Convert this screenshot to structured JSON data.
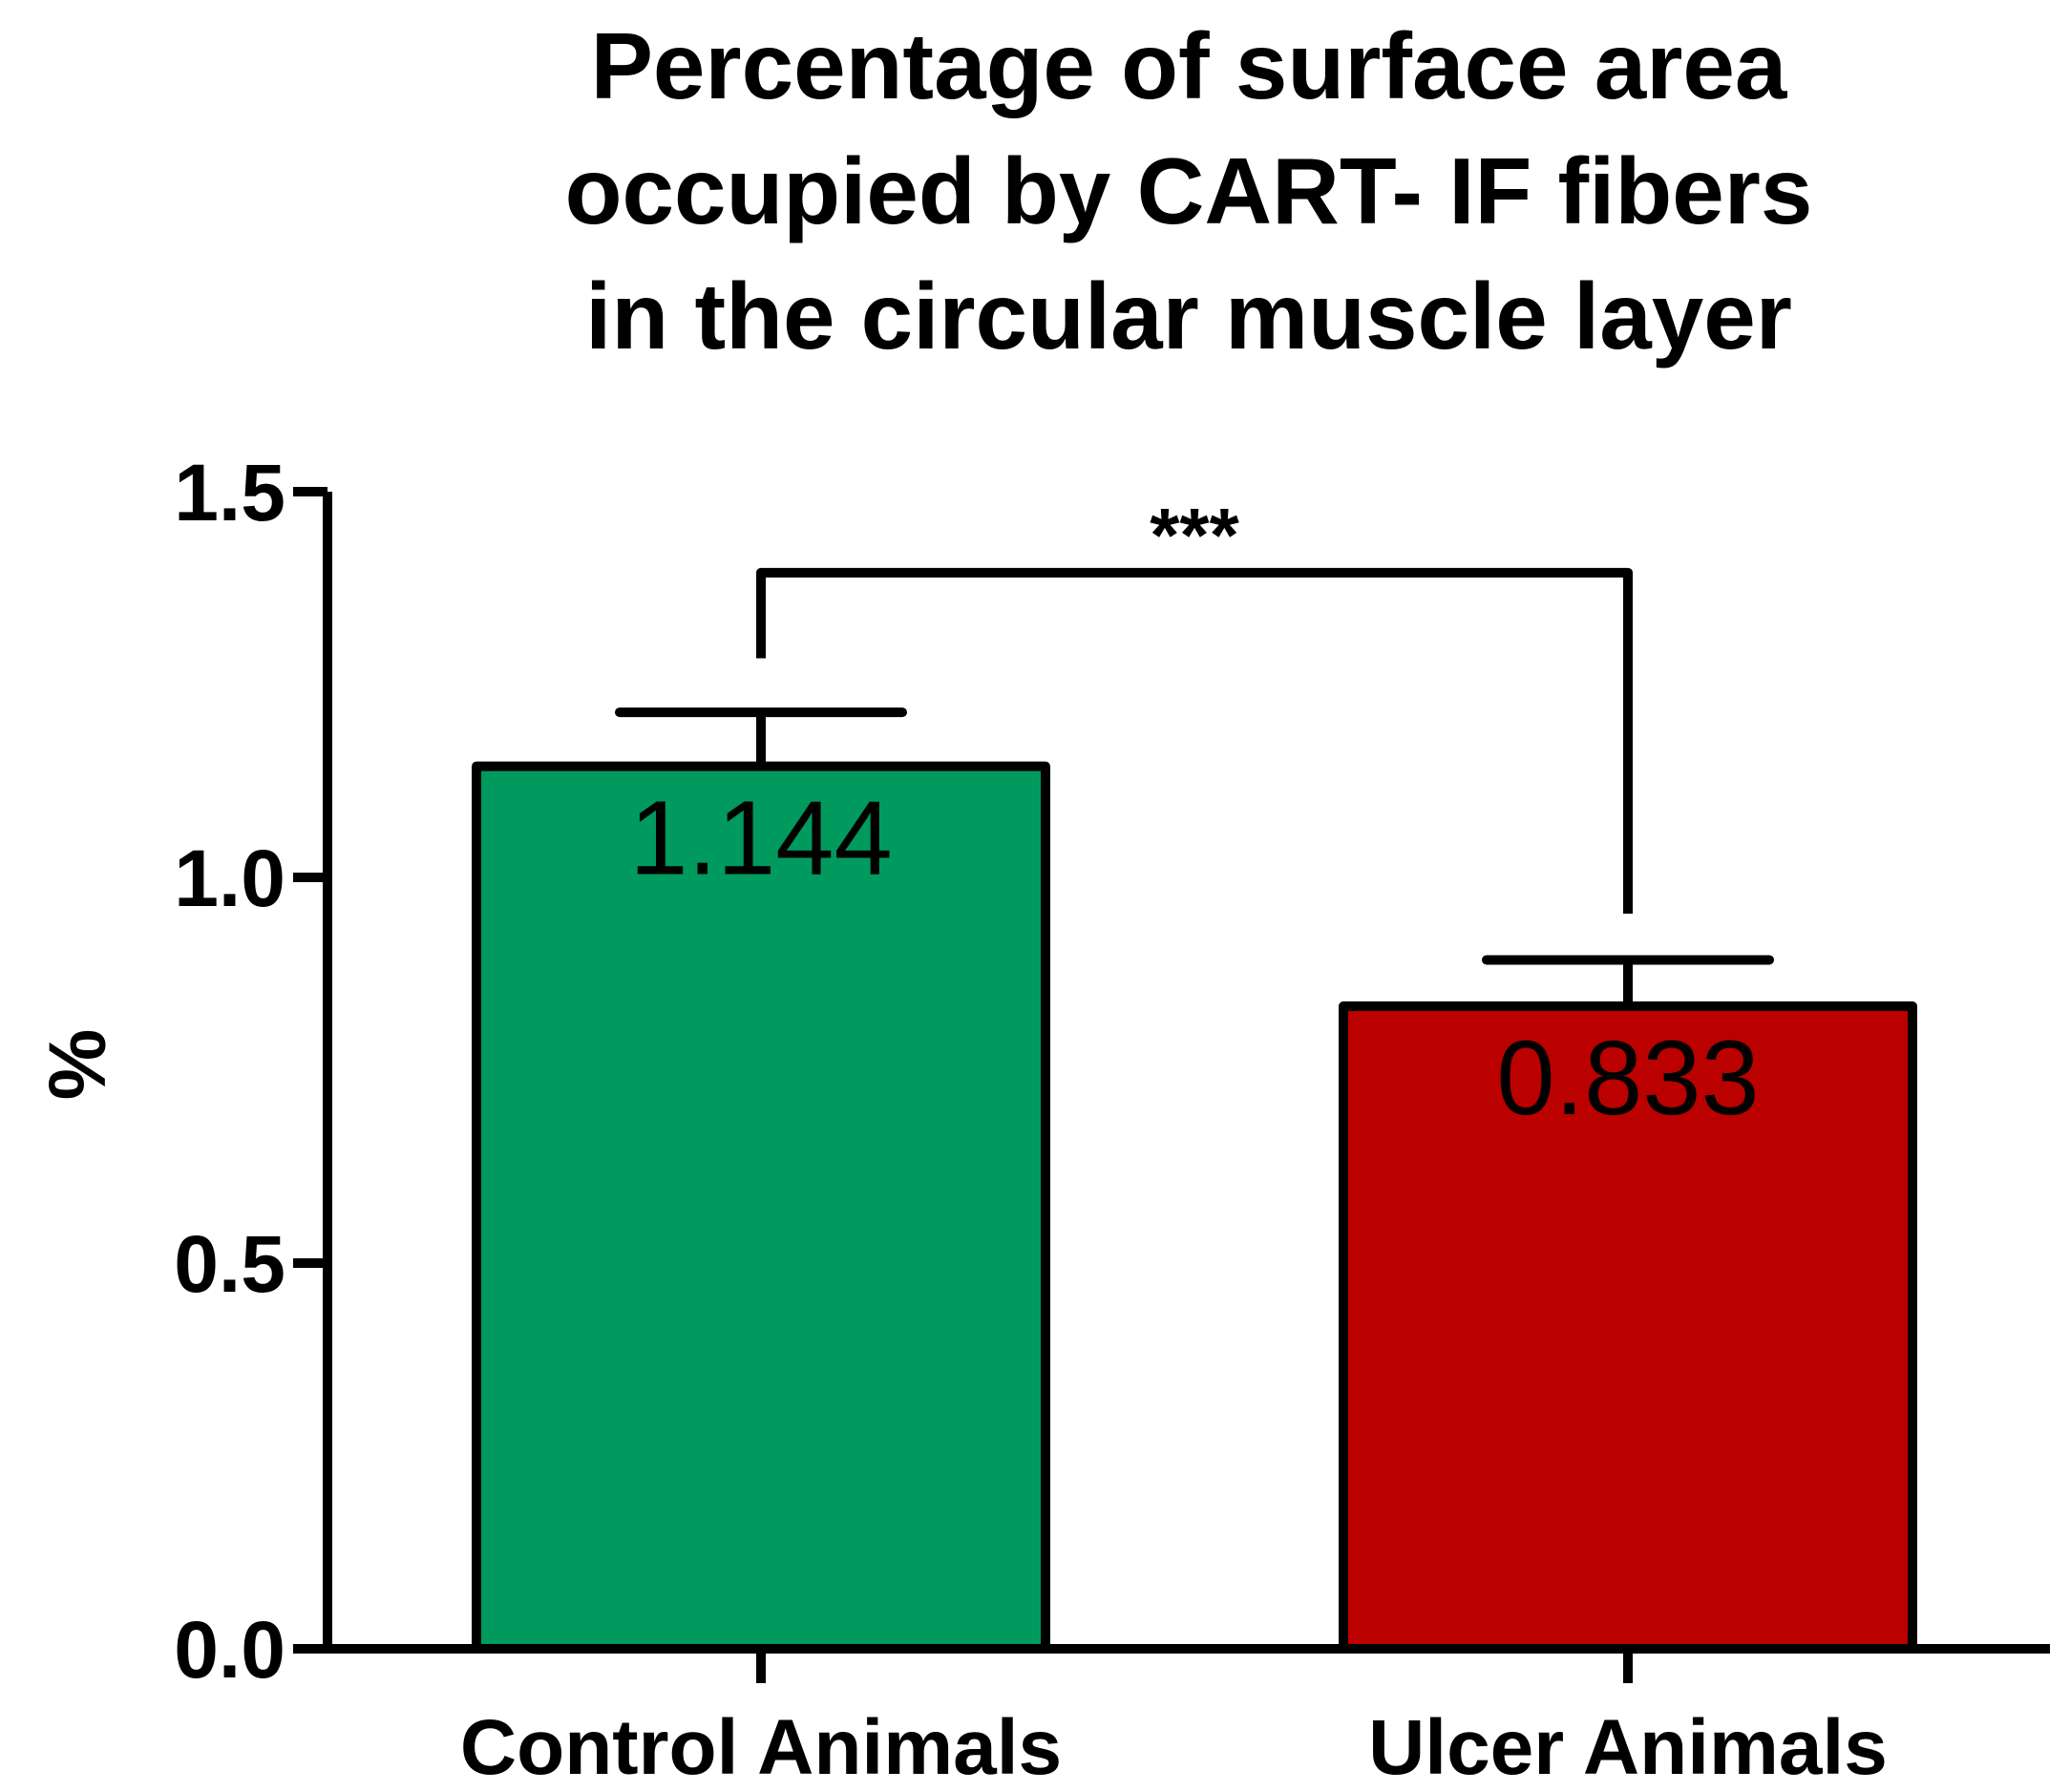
{
  "chart_data": {
    "type": "bar",
    "title": [
      "Percentage of surface area",
      "occupied by CART- IF fibers",
      "in the circular muscle layer"
    ],
    "xlabel": "",
    "ylabel": "%",
    "ylim": [
      0,
      1.5
    ],
    "yticks": [
      "0.0",
      "0.5",
      "1.0",
      "1.5"
    ],
    "ytick_values": [
      0,
      0.5,
      1.0,
      1.5
    ],
    "categories": [
      "Control Animals",
      "Ulcer Animals"
    ],
    "values": [
      1.144,
      0.833
    ],
    "value_labels": [
      "1.144",
      "0.833"
    ],
    "error_upper": [
      0.07,
      0.06
    ],
    "colors": [
      "#009a5e",
      "#bb0000"
    ],
    "significance": {
      "label": "***",
      "between": [
        0,
        1
      ]
    },
    "grid": false,
    "legend": "none"
  }
}
